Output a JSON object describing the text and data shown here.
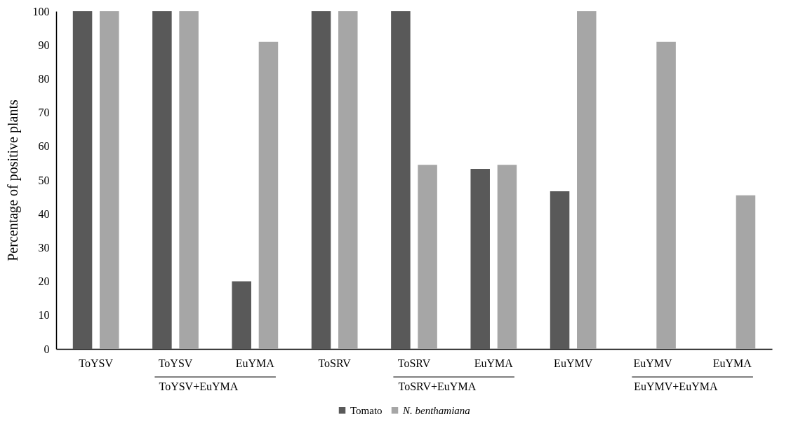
{
  "chart_data": {
    "type": "bar",
    "ylabel": "Percentage of positive plants",
    "categories": [
      "ToYSV",
      "ToYSV",
      "EuYMA",
      "ToSRV",
      "ToSRV",
      "EuYMA",
      "EuYMV",
      "EuYMV",
      "EuYMA"
    ],
    "series": [
      {
        "name": "Tomato",
        "color": "#595959",
        "values": [
          100,
          100,
          20,
          100,
          100,
          53.3,
          46.7,
          0,
          0
        ]
      },
      {
        "name": "N. benthamiana",
        "color": "#a6a6a6",
        "values": [
          100,
          100,
          90.9,
          100,
          54.5,
          54.5,
          100,
          90.9,
          45.5
        ]
      }
    ],
    "ylim": [
      0,
      100
    ],
    "yticks": [
      0,
      10,
      20,
      30,
      40,
      50,
      60,
      70,
      80,
      90,
      100
    ],
    "annotations": [
      "ToYSV+EuYMA",
      "ToSRV+EuYMA",
      "EuYMV+EuYMA"
    ],
    "grid": false,
    "legend": "bottom"
  }
}
